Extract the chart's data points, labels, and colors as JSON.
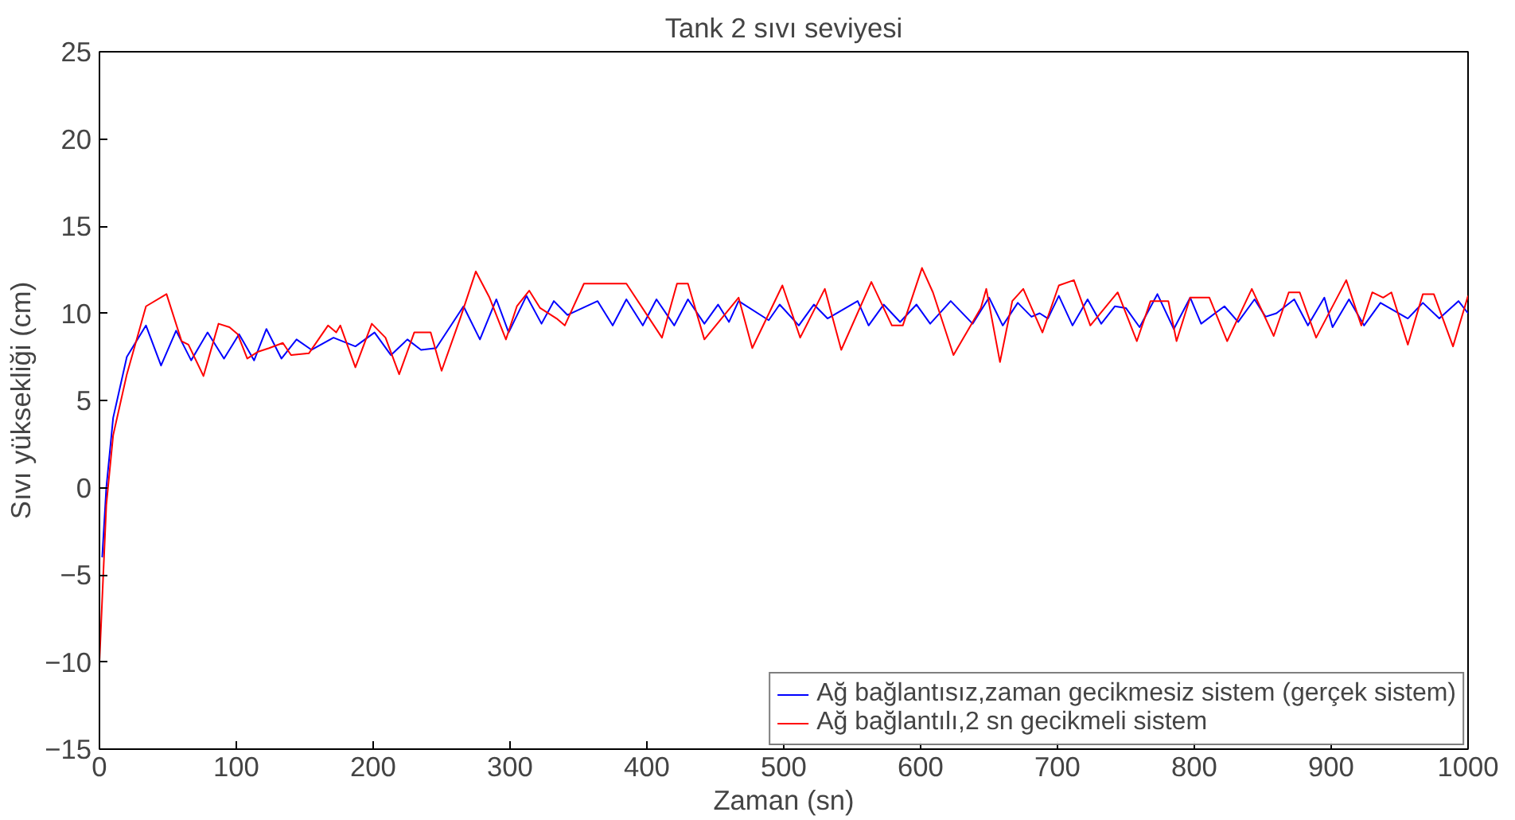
{
  "chart_data": {
    "type": "line",
    "title": "Tank 2 sıvı seviyesi",
    "xlabel": "Zaman (sn)",
    "ylabel": "Sıvı yüksekliği (cm)",
    "xlim": [
      0,
      1000
    ],
    "ylim": [
      -15,
      25
    ],
    "xticks": [
      0,
      100,
      200,
      300,
      400,
      500,
      600,
      700,
      800,
      900,
      1000
    ],
    "yticks": [
      -15,
      -10,
      -5,
      0,
      5,
      10,
      15,
      20,
      25
    ],
    "grid": false,
    "legend": "bottom right",
    "line_style": "solid",
    "marker": "none",
    "series": [
      {
        "name": "Ağ bağlantısız,zaman gecikmesiz sistem (gerçek sistem)",
        "color": "#0000ff",
        "x": [
          2,
          5,
          10,
          20,
          34,
          45,
          56,
          67,
          79,
          91,
          102,
          113,
          122,
          133,
          144,
          155,
          171,
          187,
          201,
          213,
          225,
          235,
          246,
          266,
          278,
          290,
          299,
          312,
          323,
          332,
          342,
          364,
          375,
          385,
          397,
          407,
          420,
          430,
          442,
          452,
          460,
          467,
          489,
          497,
          511,
          522,
          532,
          554,
          562,
          573,
          585,
          597,
          607,
          622,
          638,
          650,
          660,
          671,
          681,
          687,
          693,
          701,
          711,
          722,
          732,
          742,
          750,
          760,
          773,
          785,
          797,
          805,
          822,
          832,
          844,
          852,
          860,
          873,
          883,
          895,
          901,
          913,
          924,
          936,
          956,
          967,
          979,
          993,
          1000
        ],
        "values": [
          -4,
          0,
          4,
          7.5,
          9.3,
          7.0,
          9.0,
          7.3,
          8.9,
          7.4,
          8.8,
          7.3,
          9.1,
          7.4,
          8.5,
          7.9,
          8.6,
          8.1,
          8.9,
          7.6,
          8.5,
          7.9,
          8.0,
          10.4,
          8.5,
          10.8,
          8.9,
          11.0,
          9.4,
          10.7,
          9.9,
          10.7,
          9.3,
          10.8,
          9.3,
          10.8,
          9.3,
          10.8,
          9.4,
          10.5,
          9.5,
          10.7,
          9.6,
          10.5,
          9.3,
          10.5,
          9.7,
          10.7,
          9.3,
          10.5,
          9.5,
          10.5,
          9.4,
          10.7,
          9.4,
          10.9,
          9.3,
          10.6,
          9.8,
          10.0,
          9.7,
          11.0,
          9.3,
          10.8,
          9.4,
          10.4,
          10.3,
          9.2,
          11.1,
          9.1,
          10.9,
          9.4,
          10.4,
          9.5,
          10.8,
          9.8,
          10.0,
          10.8,
          9.3,
          10.9,
          9.2,
          10.8,
          9.3,
          10.6,
          9.7,
          10.6,
          9.7,
          10.7,
          10.0
        ]
      },
      {
        "name": "Ağ bağlantılı,2 sn gecikmeli sistem",
        "color": "#ff0000",
        "x": [
          0,
          5,
          10,
          20,
          34,
          49,
          60,
          65,
          76,
          87,
          95,
          101,
          108,
          116,
          124,
          134,
          140,
          153,
          167,
          173,
          176,
          187,
          199,
          209,
          219,
          230,
          242,
          250,
          264,
          275,
          285,
          297,
          305,
          314,
          322,
          334,
          340,
          354,
          385,
          411,
          422,
          430,
          442,
          467,
          477,
          499,
          512,
          530,
          542,
          564,
          579,
          587,
          601,
          609,
          624,
          644,
          648,
          658,
          667,
          675,
          689,
          701,
          712,
          724,
          744,
          758,
          768,
          781,
          787,
          797,
          811,
          824,
          842,
          858,
          869,
          877,
          889,
          911,
          922,
          930,
          938,
          944,
          956,
          967,
          975,
          989,
          1000
        ],
        "values": [
          -10,
          -1,
          3,
          6.5,
          10.4,
          11.1,
          8.4,
          8.2,
          6.4,
          9.4,
          9.2,
          8.8,
          7.4,
          7.8,
          8.0,
          8.3,
          7.6,
          7.7,
          9.3,
          8.9,
          9.3,
          6.9,
          9.4,
          8.6,
          6.5,
          8.9,
          8.9,
          6.7,
          9.8,
          12.4,
          10.9,
          8.5,
          10.4,
          11.3,
          10.3,
          9.7,
          9.3,
          11.7,
          11.7,
          8.6,
          11.7,
          11.7,
          8.5,
          10.9,
          8.0,
          11.6,
          8.6,
          11.4,
          7.9,
          11.8,
          9.3,
          9.3,
          12.6,
          11.2,
          7.6,
          10.3,
          11.4,
          7.2,
          10.7,
          11.4,
          8.9,
          11.6,
          11.9,
          9.3,
          11.2,
          8.4,
          10.7,
          10.7,
          8.4,
          10.9,
          10.9,
          8.4,
          11.4,
          8.7,
          11.2,
          11.2,
          8.6,
          11.9,
          9.3,
          11.2,
          10.9,
          11.2,
          8.2,
          11.1,
          11.1,
          8.1,
          11.0
        ]
      }
    ]
  }
}
